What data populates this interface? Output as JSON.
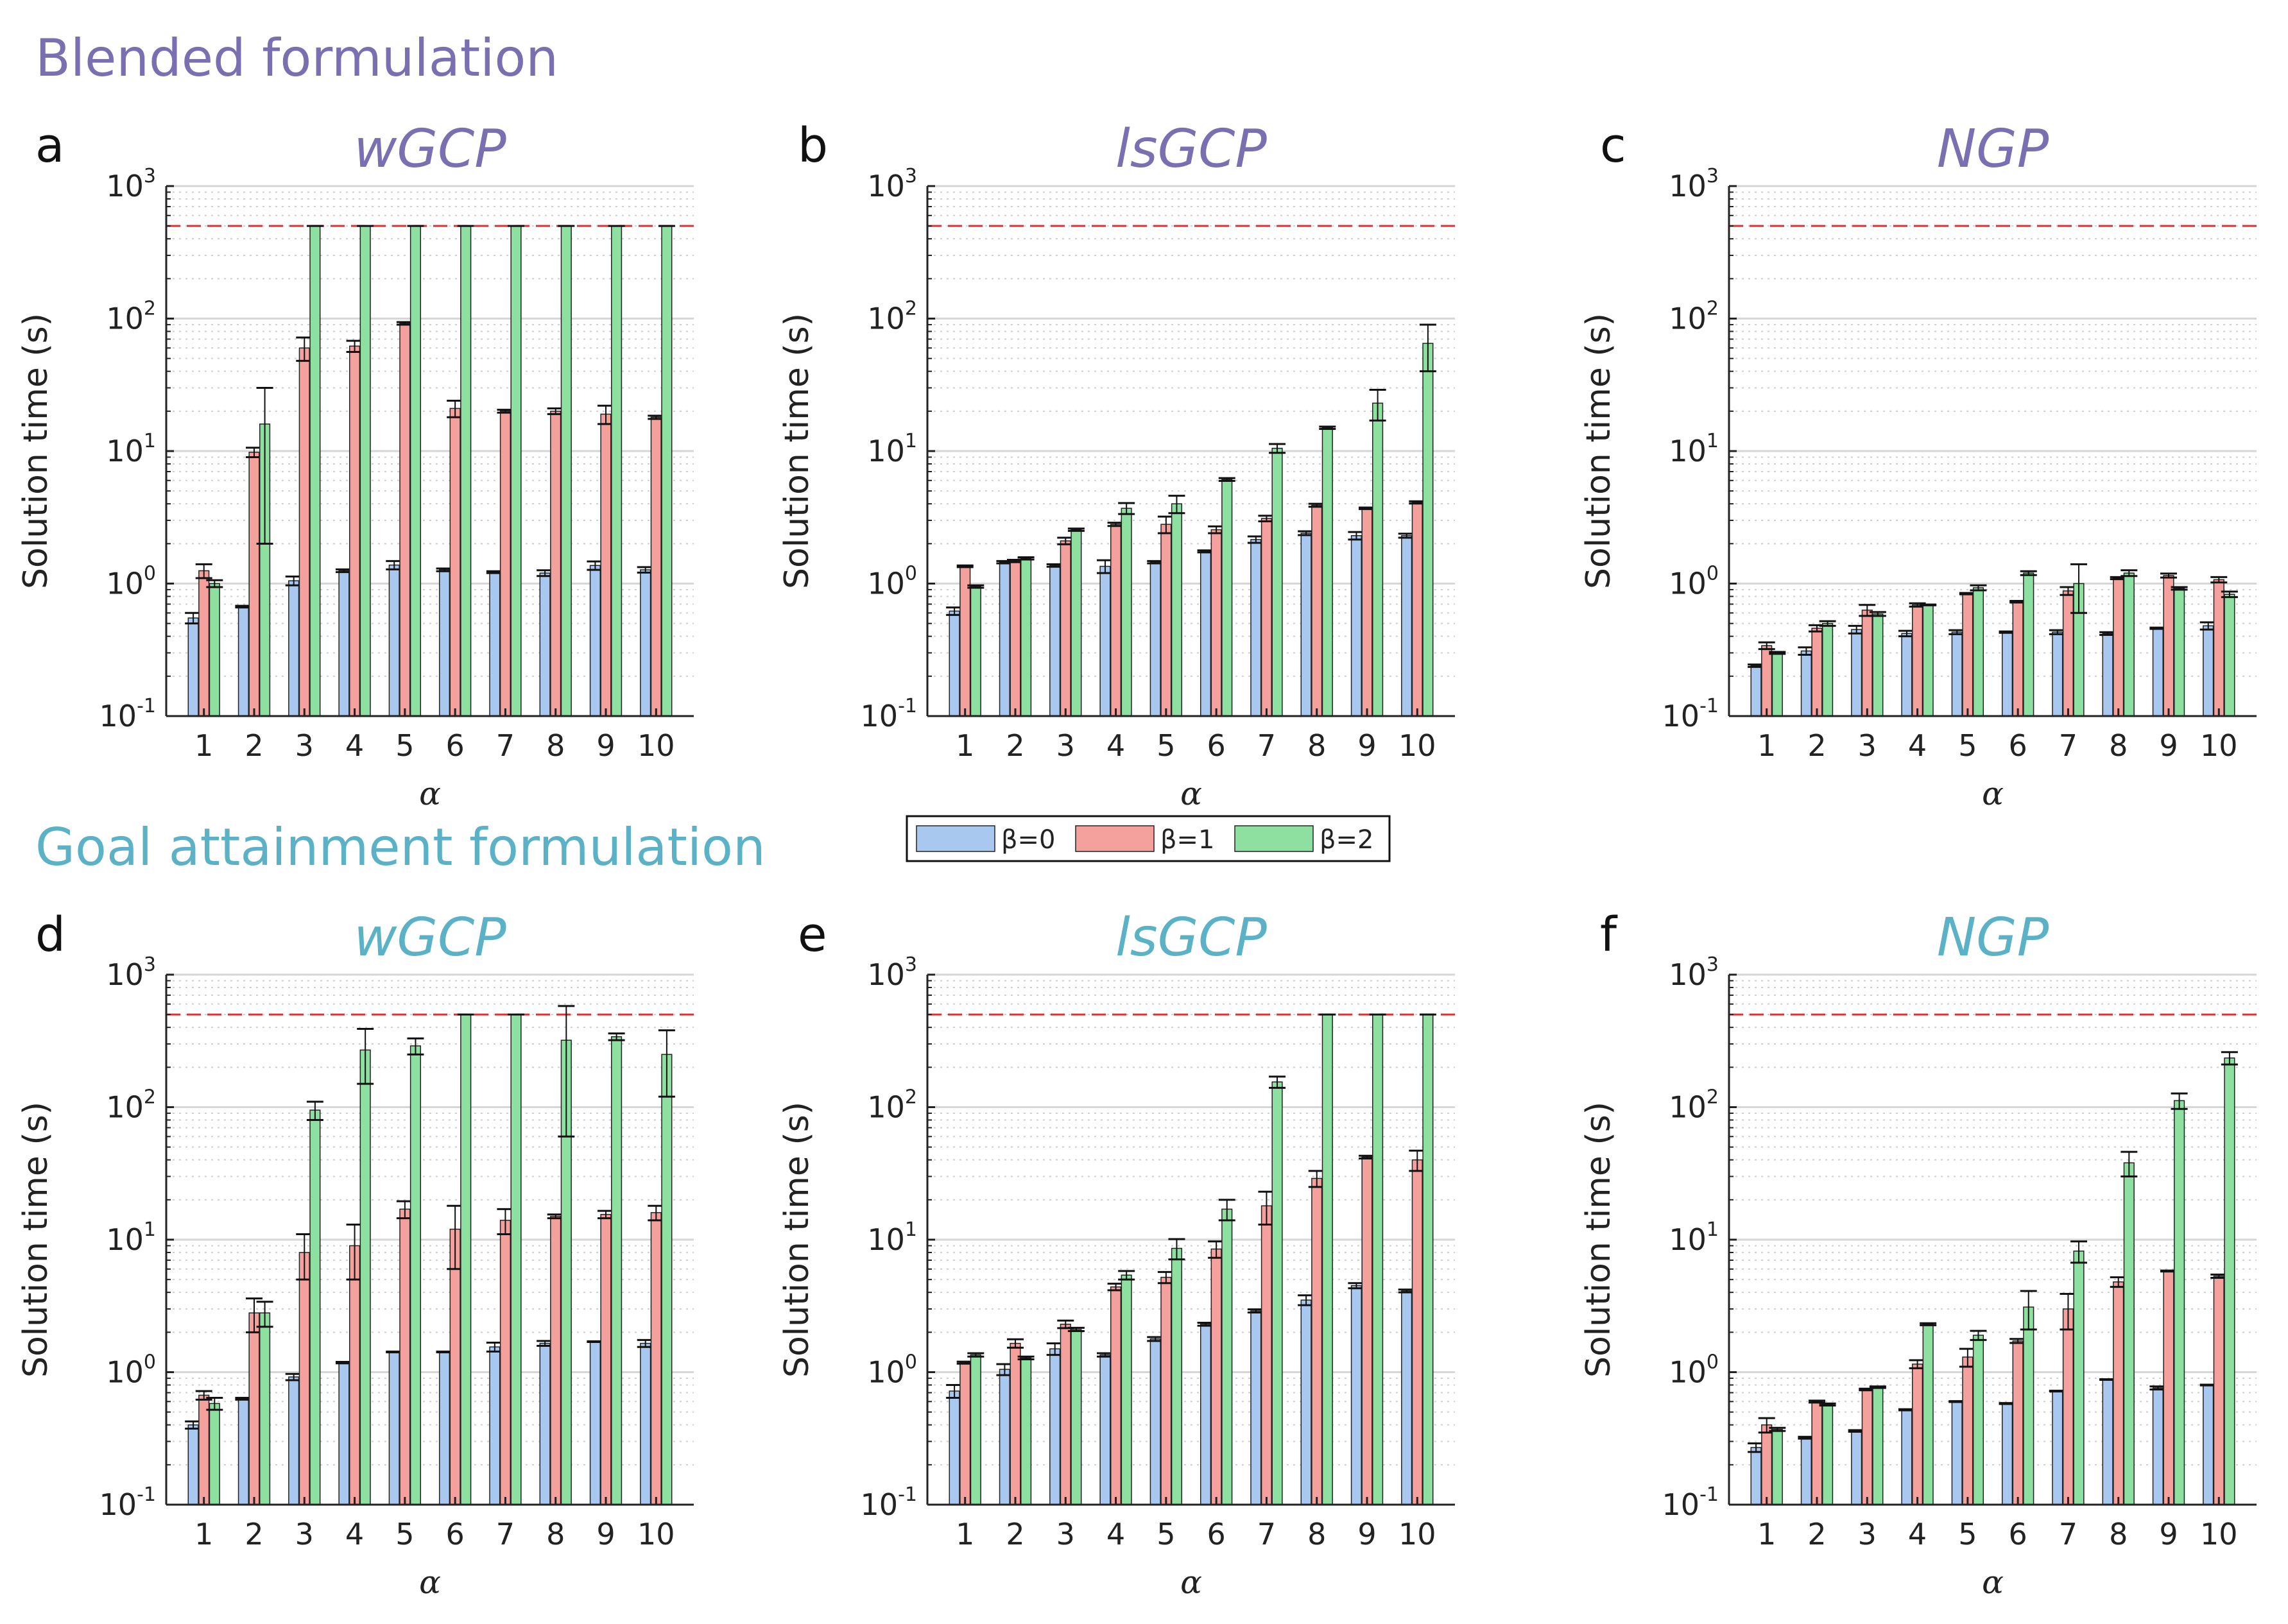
{
  "sections": [
    {
      "title": "Blended formulation",
      "color": "#7a6fb0"
    },
    {
      "title": "Goal attainment formulation",
      "color": "#5bb2c6"
    }
  ],
  "legend": [
    {
      "label": "β=0",
      "color": "#a9c8f0"
    },
    {
      "label": "β=1",
      "color": "#f4a19d"
    },
    {
      "label": "β=2",
      "color": "#8ee0a0"
    }
  ],
  "time_limit_line": {
    "value": 500,
    "color": "#e03030"
  },
  "chart_data": [
    {
      "panel": "a",
      "title": "wGCP",
      "section": "Blended formulation",
      "type": "bar",
      "yscale": "log",
      "categories": [
        "1",
        "2",
        "3",
        "4",
        "5",
        "6",
        "7",
        "8",
        "9",
        "10"
      ],
      "xlabel": "α",
      "ylabel": "Solution time (s)",
      "ylim": [
        0.1,
        1000
      ],
      "yticks": [
        {
          "base": "10",
          "exp": "-1"
        },
        {
          "base": "10",
          "exp": "0"
        },
        {
          "base": "10",
          "exp": "1"
        },
        {
          "base": "10",
          "exp": "2"
        },
        {
          "base": "10",
          "exp": "3"
        }
      ],
      "series": [
        {
          "name": "β=0",
          "values": [
            0.55,
            0.67,
            1.05,
            1.25,
            1.38,
            1.27,
            1.22,
            1.2,
            1.37,
            1.27
          ],
          "err": [
            0.05,
            0.01,
            0.08,
            0.03,
            0.1,
            0.03,
            0.02,
            0.06,
            0.1,
            0.06
          ]
        },
        {
          "name": "β=1",
          "values": [
            1.25,
            9.8,
            60,
            62,
            92,
            21,
            20,
            20,
            19,
            18
          ],
          "err": [
            0.15,
            0.8,
            12,
            6,
            2,
            3,
            0.5,
            1,
            3,
            0.5
          ]
        },
        {
          "name": "β=2",
          "values": [
            1.0,
            16,
            500,
            500,
            500,
            500,
            500,
            500,
            500,
            500
          ],
          "err": [
            0.06,
            14,
            0,
            0,
            0,
            0,
            0,
            0,
            0,
            0
          ]
        }
      ]
    },
    {
      "panel": "b",
      "title": "lsGCP",
      "section": "Blended formulation",
      "type": "bar",
      "yscale": "log",
      "categories": [
        "1",
        "2",
        "3",
        "4",
        "5",
        "6",
        "7",
        "8",
        "9",
        "10"
      ],
      "xlabel": "α",
      "ylabel": "Solution time (s)",
      "ylim": [
        0.1,
        1000
      ],
      "yticks": [
        {
          "base": "10",
          "exp": "-1"
        },
        {
          "base": "10",
          "exp": "0"
        },
        {
          "base": "10",
          "exp": "1"
        },
        {
          "base": "10",
          "exp": "2"
        },
        {
          "base": "10",
          "exp": "3"
        }
      ],
      "series": [
        {
          "name": "β=0",
          "values": [
            0.62,
            1.45,
            1.37,
            1.35,
            1.45,
            1.75,
            2.15,
            2.4,
            2.3,
            2.3
          ],
          "err": [
            0.04,
            0.03,
            0.03,
            0.15,
            0.03,
            0.03,
            0.12,
            0.08,
            0.15,
            0.08
          ]
        },
        {
          "name": "β=1",
          "values": [
            1.35,
            1.48,
            2.1,
            2.8,
            2.8,
            2.55,
            3.1,
            3.9,
            3.7,
            4.1
          ],
          "err": [
            0.02,
            0.03,
            0.12,
            0.08,
            0.4,
            0.15,
            0.15,
            0.1,
            0.05,
            0.08
          ]
        },
        {
          "name": "β=2",
          "values": [
            0.95,
            1.55,
            2.55,
            3.7,
            4.0,
            6.1,
            10.5,
            15,
            23,
            65
          ],
          "err": [
            0.02,
            0.03,
            0.05,
            0.35,
            0.6,
            0.15,
            0.8,
            0.3,
            6,
            25
          ]
        }
      ]
    },
    {
      "panel": "c",
      "title": "NGP",
      "section": "Blended formulation",
      "type": "bar",
      "yscale": "log",
      "categories": [
        "1",
        "2",
        "3",
        "4",
        "5",
        "6",
        "7",
        "8",
        "9",
        "10"
      ],
      "xlabel": "α",
      "ylabel": "Solution time (s)",
      "ylim": [
        0.1,
        1000
      ],
      "yticks": [
        {
          "base": "10",
          "exp": "-1"
        },
        {
          "base": "10",
          "exp": "0"
        },
        {
          "base": "10",
          "exp": "1"
        },
        {
          "base": "10",
          "exp": "2"
        },
        {
          "base": "10",
          "exp": "3"
        }
      ],
      "series": [
        {
          "name": "β=0",
          "values": [
            0.24,
            0.31,
            0.45,
            0.42,
            0.43,
            0.43,
            0.43,
            0.42,
            0.46,
            0.48
          ],
          "err": [
            0.005,
            0.02,
            0.03,
            0.02,
            0.015,
            0.005,
            0.015,
            0.01,
            0.005,
            0.03
          ]
        },
        {
          "name": "β=1",
          "values": [
            0.34,
            0.46,
            0.63,
            0.69,
            0.84,
            0.73,
            0.88,
            1.1,
            1.15,
            1.07
          ],
          "err": [
            0.02,
            0.025,
            0.06,
            0.02,
            0.01,
            0.01,
            0.06,
            0.02,
            0.04,
            0.05
          ]
        },
        {
          "name": "β=2",
          "values": [
            0.3,
            0.5,
            0.59,
            0.69,
            0.93,
            1.2,
            1.0,
            1.2,
            0.92,
            0.83
          ],
          "err": [
            0.005,
            0.02,
            0.02,
            0.005,
            0.04,
            0.04,
            0.4,
            0.06,
            0.02,
            0.04
          ]
        }
      ]
    },
    {
      "panel": "d",
      "title": "wGCP",
      "section": "Goal attainment formulation",
      "type": "bar",
      "yscale": "log",
      "categories": [
        "1",
        "2",
        "3",
        "4",
        "5",
        "6",
        "7",
        "8",
        "9",
        "10"
      ],
      "xlabel": "α",
      "ylabel": "Solution time (s)",
      "ylim": [
        0.1,
        1000
      ],
      "yticks": [
        {
          "base": "10",
          "exp": "-1"
        },
        {
          "base": "10",
          "exp": "0"
        },
        {
          "base": "10",
          "exp": "1"
        },
        {
          "base": "10",
          "exp": "2"
        },
        {
          "base": "10",
          "exp": "3"
        }
      ],
      "series": [
        {
          "name": "β=0",
          "values": [
            0.4,
            0.63,
            0.92,
            1.18,
            1.42,
            1.42,
            1.55,
            1.65,
            1.7,
            1.65
          ],
          "err": [
            0.025,
            0.01,
            0.05,
            0.015,
            0.01,
            0.01,
            0.12,
            0.07,
            0.01,
            0.1
          ]
        },
        {
          "name": "β=1",
          "values": [
            0.67,
            2.8,
            8,
            9,
            17,
            12,
            14,
            15,
            15.5,
            16
          ],
          "err": [
            0.05,
            0.8,
            3,
            4,
            2.5,
            6,
            3,
            0.5,
            1,
            2
          ]
        },
        {
          "name": "β=2",
          "values": [
            0.58,
            2.8,
            95,
            270,
            290,
            500,
            500,
            320,
            340,
            250
          ],
          "err": [
            0.06,
            0.6,
            15,
            120,
            40,
            0,
            0,
            260,
            20,
            130
          ]
        }
      ]
    },
    {
      "panel": "e",
      "title": "lsGCP",
      "section": "Goal attainment formulation",
      "type": "bar",
      "yscale": "log",
      "categories": [
        "1",
        "2",
        "3",
        "4",
        "5",
        "6",
        "7",
        "8",
        "9",
        "10"
      ],
      "xlabel": "α",
      "ylabel": "Solution time (s)",
      "ylim": [
        0.1,
        1000
      ],
      "yticks": [
        {
          "base": "10",
          "exp": "-1"
        },
        {
          "base": "10",
          "exp": "0"
        },
        {
          "base": "10",
          "exp": "1"
        },
        {
          "base": "10",
          "exp": "2"
        },
        {
          "base": "10",
          "exp": "3"
        }
      ],
      "series": [
        {
          "name": "β=0",
          "values": [
            0.72,
            1.05,
            1.5,
            1.35,
            1.78,
            2.3,
            2.9,
            3.5,
            4.5,
            4.1
          ],
          "err": [
            0.08,
            0.1,
            0.15,
            0.04,
            0.06,
            0.06,
            0.08,
            0.3,
            0.2,
            0.1
          ]
        },
        {
          "name": "β=1",
          "values": [
            1.18,
            1.65,
            2.3,
            4.4,
            5.2,
            8.5,
            18,
            29,
            42,
            40
          ],
          "err": [
            0.02,
            0.12,
            0.15,
            0.25,
            0.5,
            1.2,
            5,
            4,
            1,
            7
          ]
        },
        {
          "name": "β=2",
          "values": [
            1.35,
            1.28,
            2.1,
            5.4,
            8.6,
            17,
            155,
            500,
            500,
            500
          ],
          "err": [
            0.04,
            0.03,
            0.06,
            0.4,
            1.5,
            3,
            15,
            0,
            0,
            0
          ]
        }
      ]
    },
    {
      "panel": "f",
      "title": "NGP",
      "section": "Goal attainment formulation",
      "type": "bar",
      "yscale": "log",
      "categories": [
        "1",
        "2",
        "3",
        "4",
        "5",
        "6",
        "7",
        "8",
        "9",
        "10"
      ],
      "xlabel": "α",
      "ylabel": "Solution time (s)",
      "ylim": [
        0.1,
        1000
      ],
      "yticks": [
        {
          "base": "10",
          "exp": "-1"
        },
        {
          "base": "10",
          "exp": "0"
        },
        {
          "base": "10",
          "exp": "1"
        },
        {
          "base": "10",
          "exp": "2"
        },
        {
          "base": "10",
          "exp": "3"
        }
      ],
      "series": [
        {
          "name": "β=0",
          "values": [
            0.27,
            0.32,
            0.36,
            0.52,
            0.6,
            0.58,
            0.72,
            0.88,
            0.76,
            0.8
          ],
          "err": [
            0.02,
            0.005,
            0.005,
            0.005,
            0.005,
            0.005,
            0.005,
            0.005,
            0.02,
            0.005
          ]
        },
        {
          "name": "β=1",
          "values": [
            0.4,
            0.6,
            0.74,
            1.15,
            1.3,
            1.72,
            3.0,
            4.8,
            5.8,
            5.3
          ],
          "err": [
            0.05,
            0.01,
            0.01,
            0.08,
            0.2,
            0.06,
            0.9,
            0.4,
            0.05,
            0.15
          ]
        },
        {
          "name": "β=2",
          "values": [
            0.37,
            0.57,
            0.77,
            2.3,
            1.9,
            3.1,
            8.2,
            38,
            112,
            235
          ],
          "err": [
            0.01,
            0.01,
            0.01,
            0.04,
            0.15,
            1,
            1.5,
            8,
            15,
            25
          ]
        }
      ]
    }
  ]
}
